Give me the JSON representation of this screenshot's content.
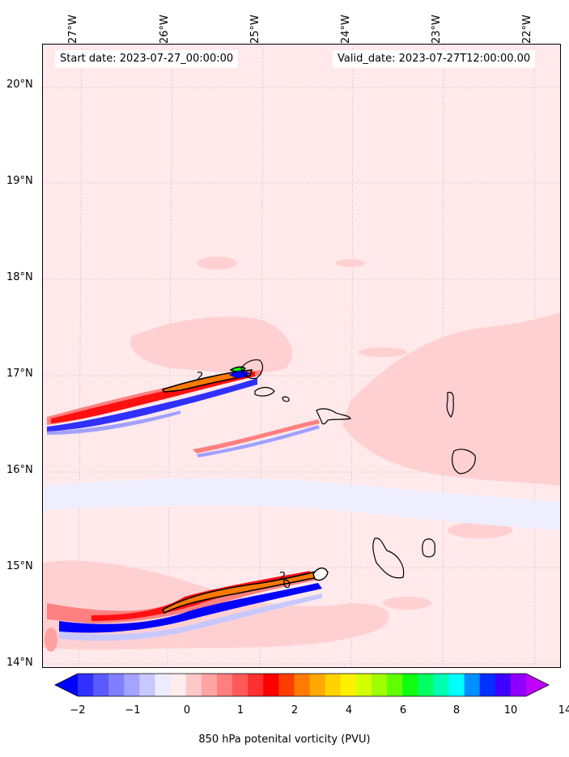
{
  "header": {
    "start_date": "Start date: 2023-07-27_00:00:00",
    "valid_date": "Valid_date: 2023-07-27T12:00:00.00"
  },
  "map": {
    "longitude_labels": [
      "27°W",
      "26°W",
      "25°W",
      "24°W",
      "23°W",
      "22°W"
    ],
    "latitude_labels": [
      "20°N",
      "19°N",
      "18°N",
      "17°N",
      "16°N",
      "15°N",
      "14°N"
    ],
    "background_color": "#ffe9ea",
    "contour_labels": [
      "2",
      "2"
    ]
  },
  "colorbar": {
    "label": "850 hPa potenital vorticity (PVU)",
    "tick_labels": [
      "−2",
      "−1",
      "0",
      "1",
      "2",
      "4",
      "6",
      "8",
      "10",
      "14"
    ],
    "colors": [
      "#0000ff",
      "#3030ff",
      "#5a5aff",
      "#7f7fff",
      "#a4a4ff",
      "#c8c8ff",
      "#ececff",
      "#ffecec",
      "#ffc8c8",
      "#ffa4a4",
      "#ff7f7f",
      "#ff5a5a",
      "#ff3030",
      "#ff0000",
      "#ff3d00",
      "#ff7a00",
      "#ffa800",
      "#ffd200",
      "#fff000",
      "#d4ff00",
      "#a0ff00",
      "#60ff00",
      "#10ff10",
      "#00ff60",
      "#00ffb0",
      "#00ffff",
      "#0090ff",
      "#0030ff",
      "#4000ff",
      "#9000ff",
      "#c000ff"
    ]
  }
}
